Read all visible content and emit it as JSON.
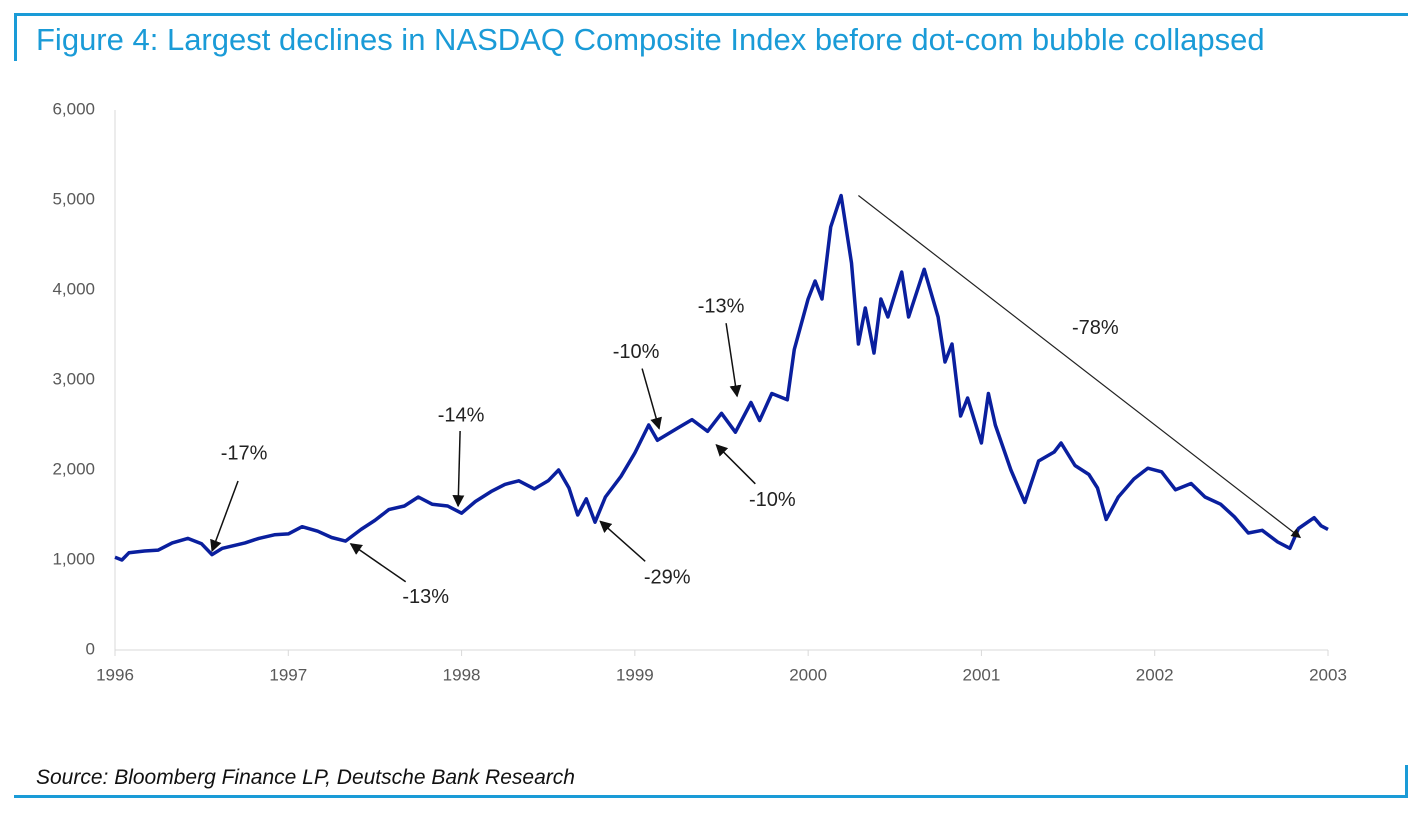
{
  "chart_data": {
    "type": "line",
    "title": "Figure 4: Largest declines in NASDAQ Composite Index before dot-com bubble collapsed",
    "source": "Source: Bloomberg Finance LP, Deutsche Bank Research",
    "color": "#0a1f9e",
    "x": [
      1996.0,
      1996.04,
      1996.08,
      1996.17,
      1996.25,
      1996.33,
      1996.42,
      1996.5,
      1996.56,
      1996.62,
      1996.75,
      1996.83,
      1996.92,
      1997.0,
      1997.08,
      1997.17,
      1997.25,
      1997.33,
      1997.42,
      1997.5,
      1997.58,
      1997.67,
      1997.75,
      1997.83,
      1997.92,
      1998.0,
      1998.08,
      1998.17,
      1998.25,
      1998.33,
      1998.42,
      1998.5,
      1998.56,
      1998.62,
      1998.67,
      1998.72,
      1998.77,
      1998.83,
      1998.92,
      1999.0,
      1999.08,
      1999.13,
      1999.25,
      1999.33,
      1999.42,
      1999.5,
      1999.58,
      1999.67,
      1999.72,
      1999.79,
      1999.88,
      1999.92,
      2000.0,
      2000.04,
      2000.08,
      2000.13,
      2000.19,
      2000.25,
      2000.29,
      2000.33,
      2000.38,
      2000.42,
      2000.46,
      2000.54,
      2000.58,
      2000.67,
      2000.75,
      2000.79,
      2000.83,
      2000.88,
      2000.92,
      2001.0,
      2001.04,
      2001.08,
      2001.17,
      2001.25,
      2001.33,
      2001.42,
      2001.46,
      2001.54,
      2001.62,
      2001.67,
      2001.72,
      2001.79,
      2001.88,
      2001.96,
      2002.04,
      2002.12,
      2002.21,
      2002.29,
      2002.38,
      2002.46,
      2002.54,
      2002.62,
      2002.71,
      2002.78,
      2002.83,
      2002.92,
      2002.96,
      2003.0
    ],
    "values": [
      1030,
      1000,
      1080,
      1100,
      1110,
      1190,
      1240,
      1180,
      1060,
      1130,
      1190,
      1240,
      1280,
      1290,
      1370,
      1320,
      1250,
      1210,
      1340,
      1440,
      1560,
      1600,
      1700,
      1620,
      1600,
      1520,
      1650,
      1760,
      1840,
      1880,
      1790,
      1880,
      2000,
      1800,
      1500,
      1680,
      1420,
      1700,
      1930,
      2190,
      2500,
      2330,
      2470,
      2560,
      2430,
      2630,
      2420,
      2750,
      2550,
      2850,
      2780,
      3340,
      3900,
      4100,
      3900,
      4700,
      5050,
      4300,
      3400,
      3800,
      3300,
      3900,
      3700,
      4200,
      3700,
      4230,
      3700,
      3200,
      3400,
      2600,
      2800,
      2300,
      2850,
      2500,
      2000,
      1640,
      2100,
      2200,
      2300,
      2050,
      1950,
      1800,
      1450,
      1700,
      1900,
      2020,
      1980,
      1780,
      1850,
      1700,
      1620,
      1480,
      1300,
      1330,
      1200,
      1130,
      1350,
      1470,
      1380,
      1340
    ],
    "xlim": [
      1996,
      2003
    ],
    "xticks": [
      1996,
      1997,
      1998,
      1999,
      2000,
      2001,
      2002,
      2003
    ],
    "ylim": [
      0,
      6000
    ],
    "yticks": [
      0,
      {
        "value": 1000,
        "label": "1,000"
      },
      {
        "value": 2000,
        "label": "2,000"
      },
      {
        "value": 3000,
        "label": "3,000"
      },
      {
        "value": 4000,
        "label": "4,000"
      },
      {
        "value": 5000,
        "label": "5,000"
      },
      {
        "value": 6000,
        "label": "6,000"
      }
    ],
    "annotations": [
      {
        "text": "-17%",
        "x": 1996.56,
        "y": 1100
      },
      {
        "text": "-13%",
        "x": 1997.36,
        "y": 1180
      },
      {
        "text": "-14%",
        "x": 1997.98,
        "y": 1600
      },
      {
        "text": "-29%",
        "x": 1998.8,
        "y": 1430
      },
      {
        "text": "-10%",
        "x": 1999.14,
        "y": 2460
      },
      {
        "text": "-13%",
        "x": 1999.59,
        "y": 2820
      },
      {
        "text": "-10%",
        "x": 1999.47,
        "y": 2280
      },
      {
        "text": "-78%",
        "x": 2000.29,
        "y": 5050,
        "x2": 2002.84,
        "y2": 1250
      }
    ]
  }
}
